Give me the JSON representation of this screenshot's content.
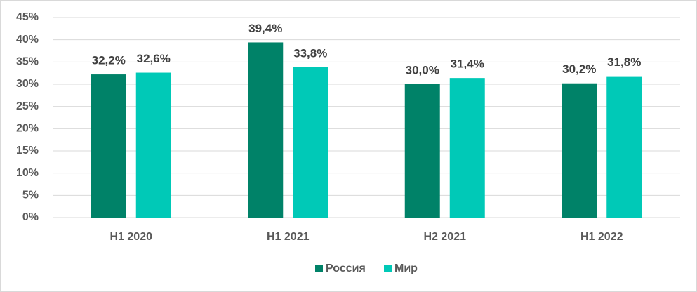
{
  "chart_data": {
    "type": "bar",
    "categories": [
      "H1 2020",
      "H1 2021",
      "H2 2021",
      "H1 2022"
    ],
    "series": [
      {
        "name": "Россия",
        "color": "#008268",
        "values": [
          32.2,
          39.4,
          30.0,
          30.2
        ],
        "value_labels": [
          "32,2%",
          "39,4%",
          "30,0%",
          "30,2%"
        ]
      },
      {
        "name": "Мир",
        "color": "#00c9b7",
        "values": [
          32.6,
          33.8,
          31.4,
          31.8
        ],
        "value_labels": [
          "32,6%",
          "33,8%",
          "31,4%",
          "31,8%"
        ]
      }
    ],
    "ylim": [
      0,
      45
    ],
    "yticks": [
      {
        "value": 0,
        "label": "0%"
      },
      {
        "value": 5,
        "label": "5%"
      },
      {
        "value": 10,
        "label": "10%"
      },
      {
        "value": 15,
        "label": "15%"
      },
      {
        "value": 20,
        "label": "20%"
      },
      {
        "value": 25,
        "label": "25%"
      },
      {
        "value": 30,
        "label": "30%"
      },
      {
        "value": 35,
        "label": "35%"
      },
      {
        "value": 40,
        "label": "40%"
      },
      {
        "value": 45,
        "label": "45%"
      }
    ],
    "grid": true,
    "legend": "bottom"
  }
}
